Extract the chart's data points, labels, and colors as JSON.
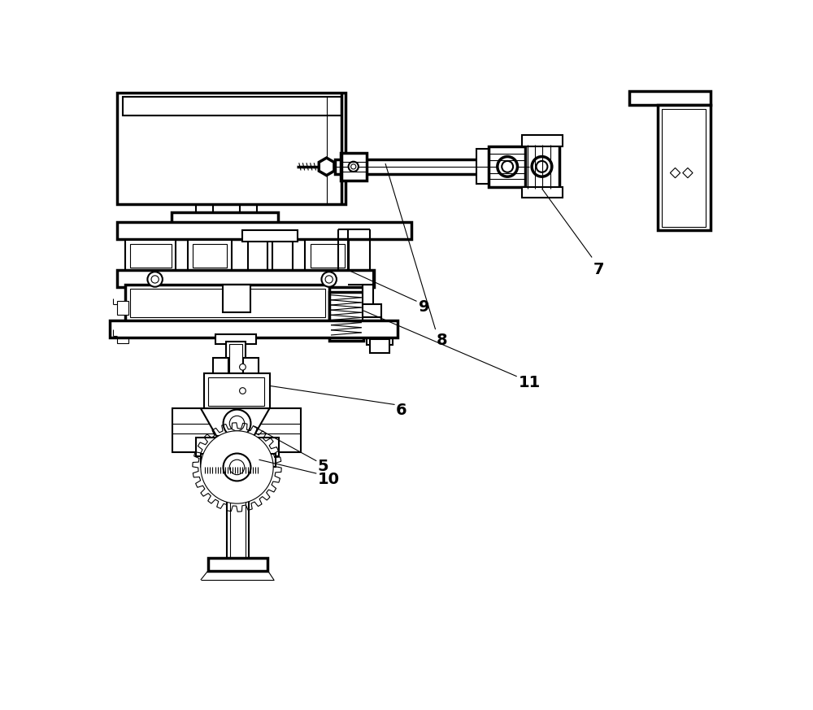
{
  "background_color": "#ffffff",
  "line_color": "#000000",
  "figsize": [
    10.0,
    8.73
  ],
  "dpi": 100,
  "lw_main": 1.5,
  "lw_thick": 2.5,
  "lw_thin": 0.8,
  "label_fontsize": 14,
  "label_fontweight": "bold"
}
